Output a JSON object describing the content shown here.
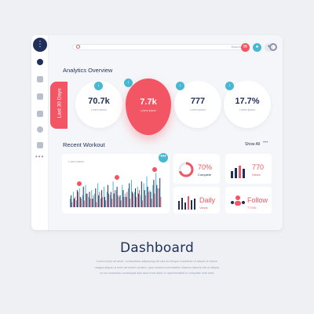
{
  "topbar": {
    "search_label": "Search",
    "accent_red": "#f25563",
    "accent_teal": "#48b8d1"
  },
  "sidebar": {
    "items": [
      "user-icon",
      "grid-icon",
      "document-icon",
      "folder-icon",
      "globe-icon",
      "gear-icon"
    ],
    "more": "•••"
  },
  "analytics": {
    "title": "Analytics Overview",
    "period_tab": "Last 30 Days",
    "stats": [
      {
        "value": "70.7k",
        "label": "Lorem ipsum"
      },
      {
        "value": "7.7k",
        "label": "Lorem ipsum"
      },
      {
        "value": "777",
        "label": "Lorem ipsum"
      },
      {
        "value": "17.7%",
        "label": "Lorem ipsum"
      }
    ]
  },
  "workout": {
    "title": "Recent Workout",
    "show_all": "Show All",
    "more": "•••",
    "card_title": "Lorem ipsum",
    "more_button": "•••"
  },
  "mini_cards": {
    "complete": {
      "value": "70%",
      "label": "Complete",
      "progress": 0.7
    },
    "views": {
      "value": "770",
      "label": "Views"
    },
    "daily": {
      "value": "Daily",
      "label": "Views"
    },
    "follow": {
      "value": "Follow",
      "label": "7770K"
    }
  },
  "page": {
    "title": "Dashboard",
    "description_lines": [
      "Lorem dolor sit amet, consectetur adipiscing elit sed do tempor incididunt ut labore et dolore",
      "magna aliqua ut enim ad minim veniam, quis nostrud exercitation ullamco laboris nisi ut aliquip",
      "ex ea commodo consequat duis aute irure dolor in reprehenderit in voluptate velit esse"
    ]
  },
  "chart_data": {
    "type": "bar",
    "title": "Lorem ipsum",
    "series": [
      {
        "color": "#48b8d1",
        "values": [
          5,
          9,
          4,
          11,
          7,
          13,
          6,
          10,
          8,
          14,
          5,
          12,
          9,
          7,
          15,
          10,
          6,
          13,
          8,
          11,
          16,
          9,
          12,
          7,
          14,
          18,
          10,
          13,
          20,
          11
        ]
      },
      {
        "color": "#1f2f5a",
        "values": [
          7,
          5,
          10,
          6,
          12,
          8,
          9,
          5,
          11,
          7,
          10,
          6,
          13,
          9,
          8,
          12,
          7,
          10,
          6,
          14,
          9,
          11,
          8,
          15,
          10,
          12,
          9,
          16,
          13,
          17
        ]
      },
      {
        "color": "#f25563",
        "values": [
          3,
          6,
          9,
          5,
          4,
          8,
          5,
          7,
          3,
          9,
          6,
          4,
          8,
          5,
          10,
          7,
          4,
          6,
          9,
          5,
          8,
          6,
          10,
          4,
          7,
          9,
          5,
          8,
          11,
          6
        ]
      }
    ],
    "ylim": [
      0,
      22
    ]
  }
}
